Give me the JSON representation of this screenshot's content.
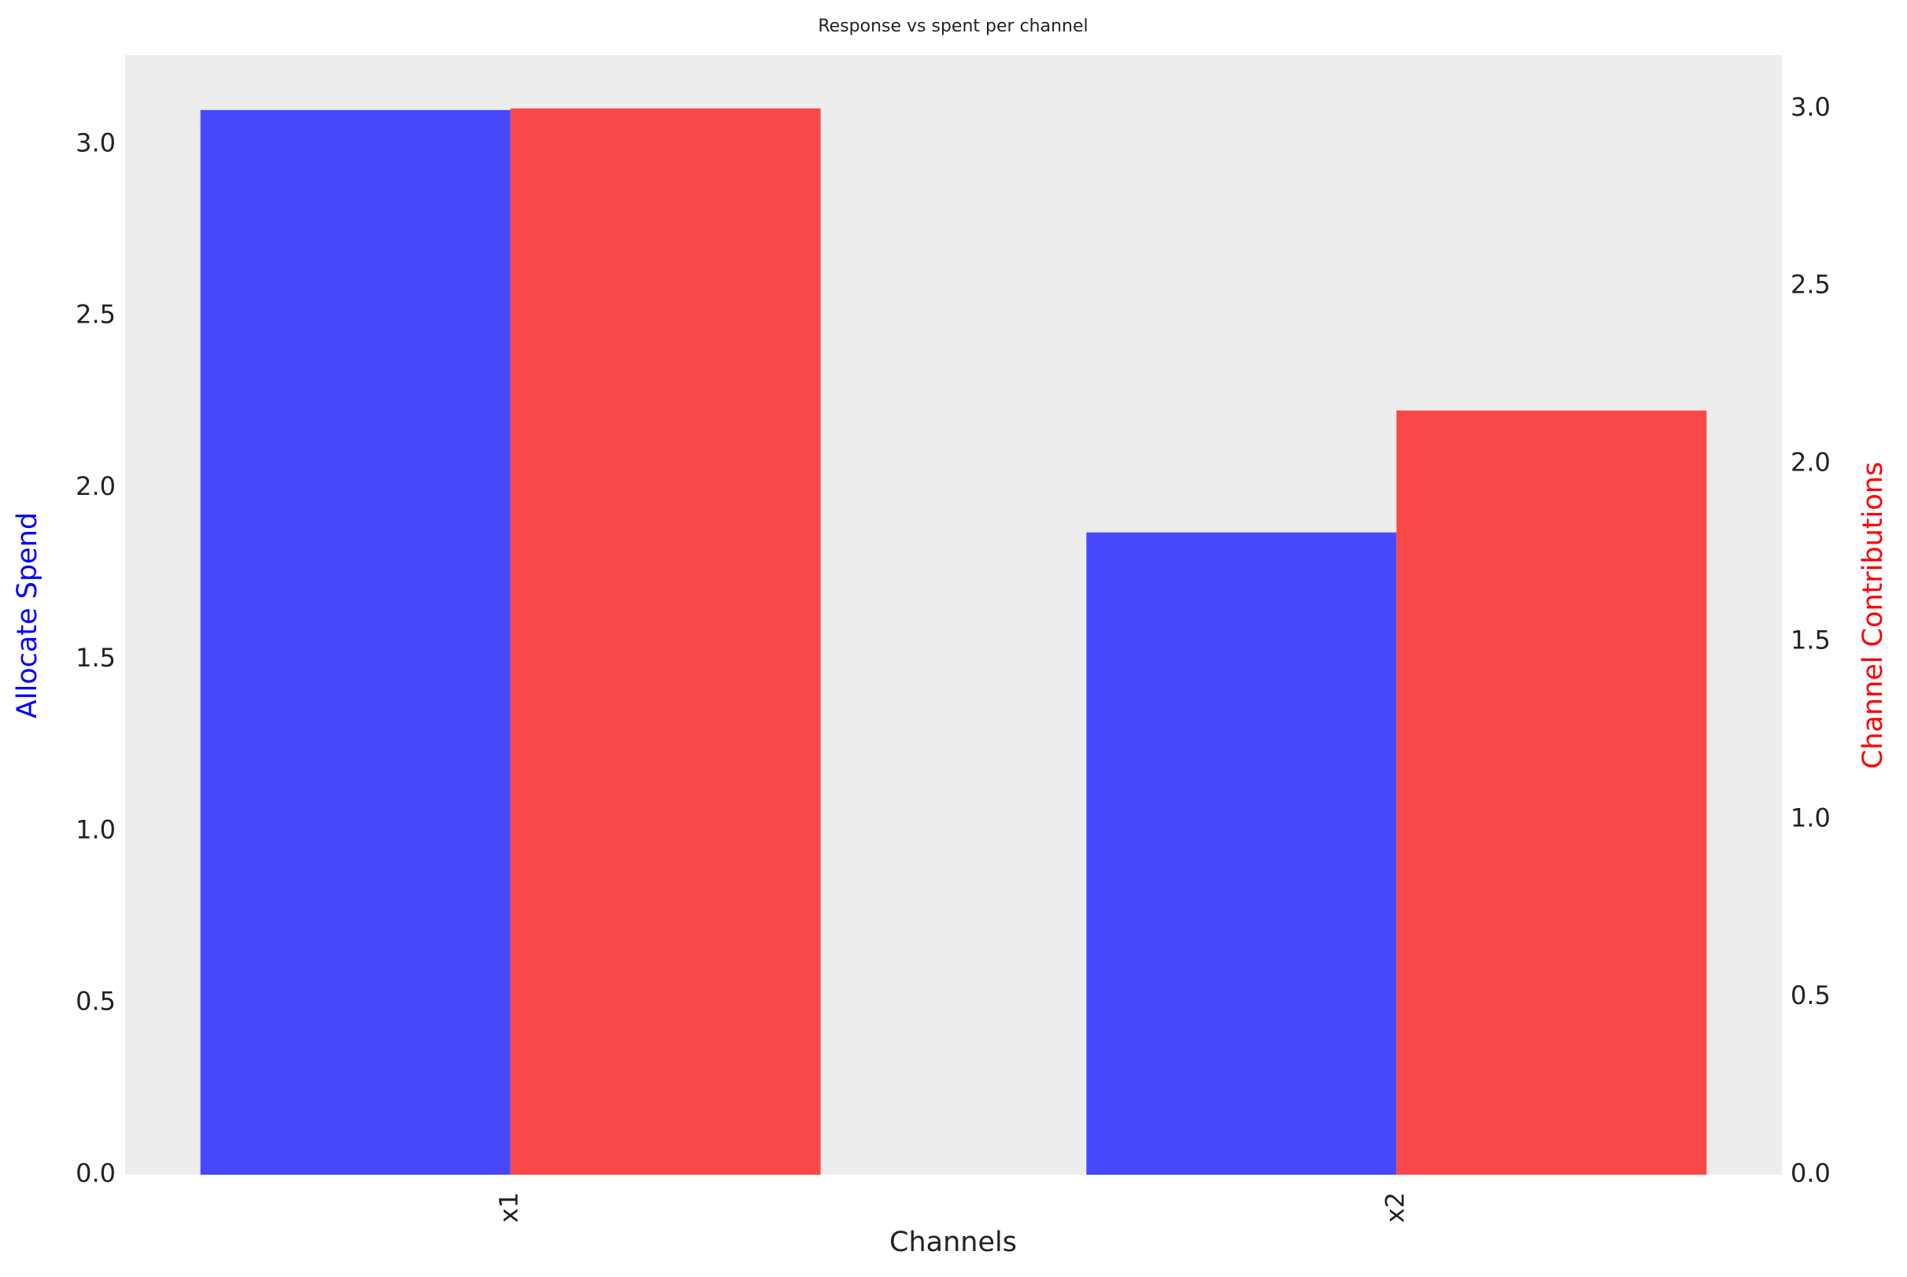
{
  "chart_data": {
    "type": "bar",
    "title": "Response vs spent per channel",
    "xlabel": "Channels",
    "ylabel": "Allocate Spend",
    "ylabel_color": "#0000ff",
    "y2label": "Channel Contributions",
    "y2label_color": "#ff0000",
    "categories": [
      "x1",
      "x2"
    ],
    "series": [
      {
        "name": "Allocate Spend",
        "color": "#4848fb",
        "values": [
          3.1,
          1.87
        ]
      },
      {
        "name": "Channel Contributions",
        "color": "#f84848",
        "values": [
          3.0,
          2.15
        ],
        "axis": "y2"
      }
    ],
    "ylim": [
      0,
      3.26
    ],
    "yticks": [
      {
        "value": 0,
        "label": "0.0"
      },
      0.5,
      {
        "value": 1,
        "label": "1.0"
      },
      1.5,
      {
        "value": 2,
        "label": "2.0"
      },
      2.5,
      {
        "value": 3,
        "label": "3.0"
      }
    ],
    "y2lim": [
      0,
      3.15
    ],
    "y2ticks": [
      {
        "value": 0,
        "label": "0.0"
      },
      0.5,
      {
        "value": 1,
        "label": "1.0"
      },
      1.5,
      {
        "value": 2,
        "label": "2.0"
      },
      2.5,
      {
        "value": 3,
        "label": "3.0"
      }
    ],
    "grid": false
  }
}
